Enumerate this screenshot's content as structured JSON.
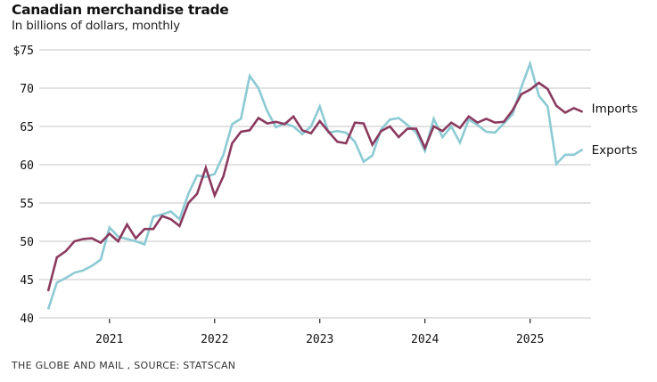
{
  "header": {
    "title": "Canadian merchandise trade",
    "subtitle": "In billions of dollars, monthly"
  },
  "footer": {
    "source": "THE GLOBE AND MAIL , SOURCE: STATSCAN"
  },
  "chart_data": {
    "type": "line",
    "title": "Canadian merchandise trade",
    "subtitle": "In billions of dollars, monthly",
    "xlabel": "",
    "ylabel": "",
    "x_start": "2020-06",
    "x_end": "2025-07",
    "frequency": "monthly",
    "ylim": [
      40,
      75
    ],
    "yticks": [
      40,
      45,
      50,
      55,
      60,
      65,
      70,
      75
    ],
    "ytick_labels": [
      "40",
      "45",
      "50",
      "55",
      "60",
      "65",
      "70",
      "$75"
    ],
    "xticks": [
      "2021-01",
      "2022-01",
      "2023-01",
      "2024-01",
      "2025-01"
    ],
    "xtick_labels": [
      "2021",
      "2022",
      "2023",
      "2024",
      "2025"
    ],
    "grid": true,
    "legend": "direct labels at right end of lines",
    "series": [
      {
        "name": "Imports",
        "color": "#8a3a5e",
        "values": [
          43.5,
          47.9,
          48.7,
          50.0,
          50.3,
          50.4,
          49.8,
          51.0,
          50.0,
          52.2,
          50.4,
          51.6,
          51.6,
          53.3,
          52.9,
          52.0,
          55.0,
          56.2,
          59.6,
          56.0,
          58.5,
          62.8,
          64.3,
          64.5,
          66.1,
          65.4,
          65.6,
          65.3,
          66.3,
          64.5,
          64.1,
          65.7,
          64.3,
          63.0,
          62.8,
          65.5,
          65.4,
          62.6,
          64.4,
          65.0,
          63.6,
          64.7,
          64.7,
          62.2,
          65.0,
          64.4,
          65.5,
          64.8,
          66.3,
          65.5,
          66.0,
          65.5,
          65.6,
          67.1,
          69.2,
          69.8,
          70.7,
          69.9,
          67.7,
          66.8,
          67.4,
          66.9
        ]
      },
      {
        "name": "Exports",
        "color": "#8ccad4",
        "values": [
          41.1,
          44.6,
          45.2,
          45.9,
          46.2,
          46.8,
          47.6,
          51.8,
          50.6,
          50.3,
          50.0,
          49.6,
          53.2,
          53.5,
          53.9,
          52.9,
          56.2,
          58.6,
          58.4,
          58.8,
          61.3,
          65.3,
          66.0,
          71.6,
          70.0,
          67.0,
          64.9,
          65.4,
          65.0,
          64.0,
          65.0,
          67.6,
          64.2,
          64.4,
          64.2,
          63.0,
          60.4,
          61.2,
          64.6,
          65.9,
          66.1,
          65.2,
          64.2,
          61.8,
          66.0,
          63.6,
          65.0,
          62.9,
          65.9,
          65.2,
          64.3,
          64.2,
          65.4,
          66.6,
          70.1,
          73.2,
          69.0,
          67.6,
          60.1,
          61.3,
          61.3,
          62.0
        ]
      }
    ]
  }
}
